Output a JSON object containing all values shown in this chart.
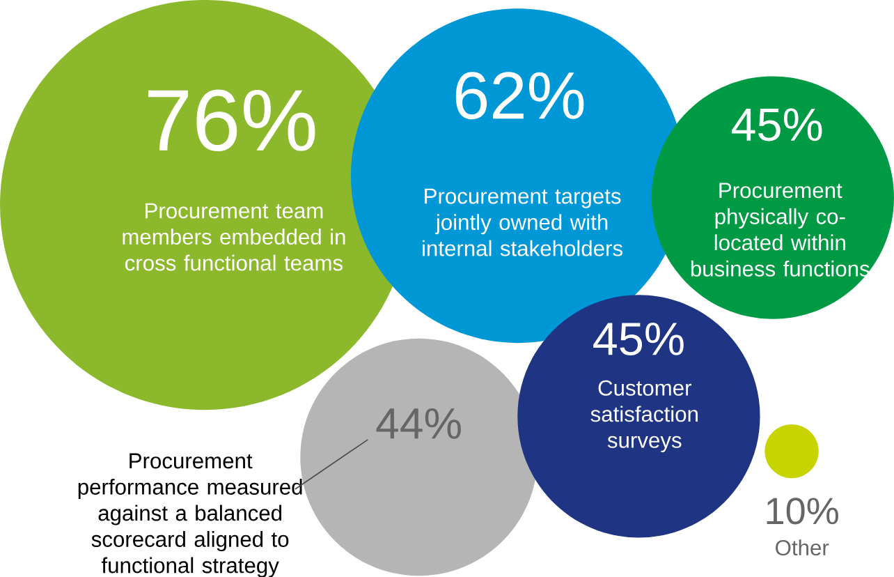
{
  "chart_data": {
    "type": "other",
    "categories": [
      "Procurement team members embedded in cross functional teams",
      "Procurement targets jointly owned with internal stakeholders",
      "Procurement physically co-located within business functions",
      "Customer satisfaction surveys",
      "Procurement performance measured against a balanced scorecard aligned to functional strategy",
      "Other"
    ],
    "values": [
      76,
      62,
      45,
      45,
      44,
      10
    ],
    "value_labels": [
      "76%",
      "62%",
      "45%",
      "45%",
      "44%",
      "10%"
    ],
    "colors": [
      "#8cb82b",
      "#0097d7",
      "#009a44",
      "#1f3584",
      "#b5b5b5",
      "#c8d400"
    ],
    "data_labels": true
  }
}
